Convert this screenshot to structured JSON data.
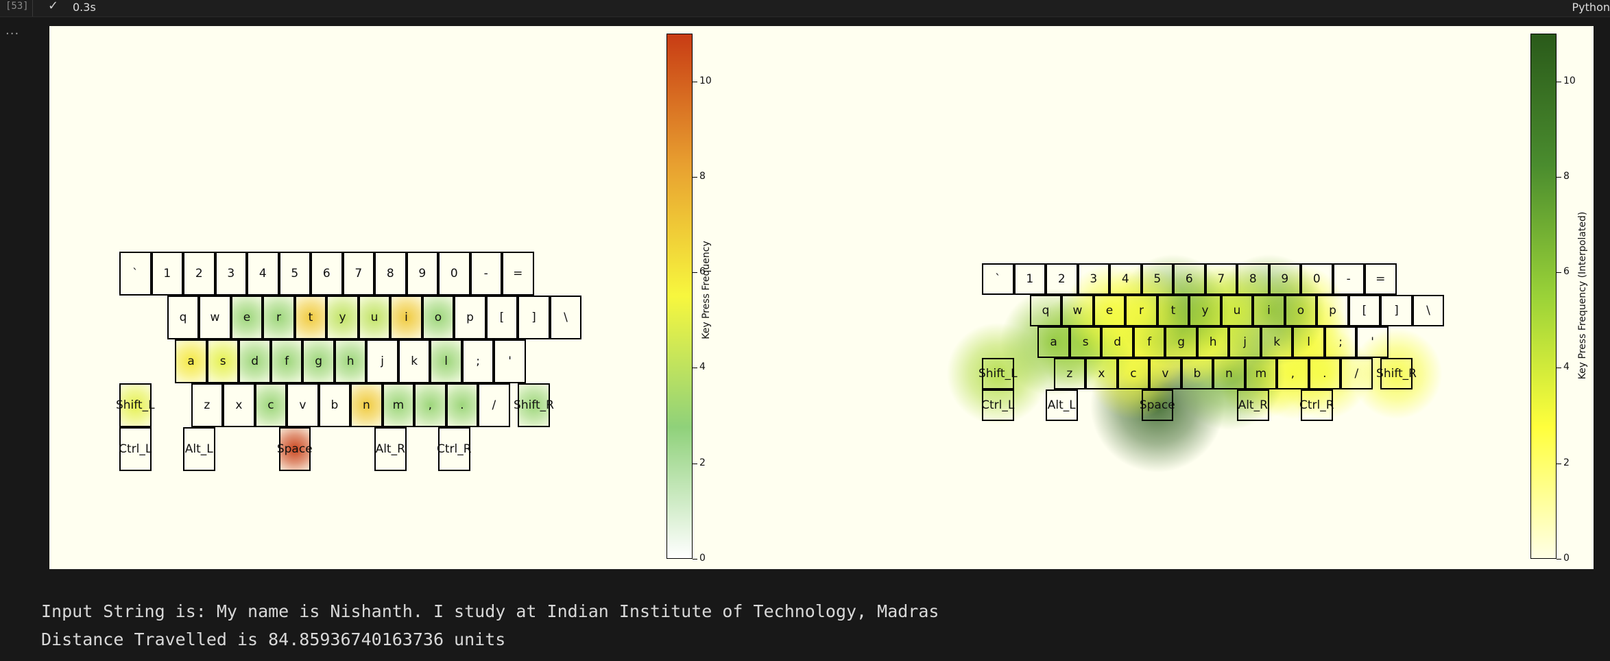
{
  "cell": {
    "execution_count": "[53]",
    "status_icon": "checkmark-icon",
    "duration": "0.3s",
    "kernel_label": "Python",
    "collapse_label": "..."
  },
  "figure": {
    "left_plot": {
      "colorbar_label": "Key Press Frequency",
      "colorbar_ticks": [
        "0",
        "2",
        "4",
        "6",
        "8",
        "10"
      ],
      "colormap": [
        "#ffffff",
        "#8fd17a",
        "#f7f73e",
        "#e8a030",
        "#c83c14"
      ],
      "vmax": 11
    },
    "right_plot": {
      "colorbar_label": "Key Press Frequency (Interpolated)",
      "colorbar_ticks": [
        "0",
        "2",
        "4",
        "6",
        "8",
        "10"
      ],
      "colormap": [
        "#ffffe6",
        "#ffff3c",
        "#9ad238",
        "#4a8c2e",
        "#2a5a1a"
      ],
      "vmax": 11
    },
    "keys": [
      {
        "label": "`",
        "count": 0
      },
      {
        "label": "1",
        "count": 0
      },
      {
        "label": "2",
        "count": 0
      },
      {
        "label": "3",
        "count": 0
      },
      {
        "label": "4",
        "count": 0
      },
      {
        "label": "5",
        "count": 0
      },
      {
        "label": "6",
        "count": 0
      },
      {
        "label": "7",
        "count": 0
      },
      {
        "label": "8",
        "count": 0
      },
      {
        "label": "9",
        "count": 0
      },
      {
        "label": "0",
        "count": 0
      },
      {
        "label": "-",
        "count": 0
      },
      {
        "label": "=",
        "count": 0
      },
      {
        "label": "q",
        "count": 0
      },
      {
        "label": "w",
        "count": 0
      },
      {
        "label": "e",
        "count": 3
      },
      {
        "label": "r",
        "count": 3
      },
      {
        "label": "t",
        "count": 7
      },
      {
        "label": "y",
        "count": 4
      },
      {
        "label": "u",
        "count": 4
      },
      {
        "label": "i",
        "count": 7
      },
      {
        "label": "o",
        "count": 3
      },
      {
        "label": "p",
        "count": 0
      },
      {
        "label": "[",
        "count": 0
      },
      {
        "label": "]",
        "count": 0
      },
      {
        "label": "\\",
        "count": 0
      },
      {
        "label": "a",
        "count": 6
      },
      {
        "label": "s",
        "count": 5
      },
      {
        "label": "d",
        "count": 3
      },
      {
        "label": "f",
        "count": 3
      },
      {
        "label": "g",
        "count": 3
      },
      {
        "label": "h",
        "count": 3
      },
      {
        "label": "j",
        "count": 0
      },
      {
        "label": "k",
        "count": 0
      },
      {
        "label": "l",
        "count": 3
      },
      {
        "label": ";",
        "count": 0
      },
      {
        "label": "'",
        "count": 0
      },
      {
        "label": "Shift_L",
        "count": 5
      },
      {
        "label": "z",
        "count": 0
      },
      {
        "label": "x",
        "count": 0
      },
      {
        "label": "c",
        "count": 3
      },
      {
        "label": "v",
        "count": 0
      },
      {
        "label": "b",
        "count": 0
      },
      {
        "label": "n",
        "count": 7
      },
      {
        "label": "m",
        "count": 3
      },
      {
        "label": ",",
        "count": 3
      },
      {
        "label": ".",
        "count": 3
      },
      {
        "label": "/",
        "count": 0
      },
      {
        "label": "Shift_R",
        "count": 3
      },
      {
        "label": "Ctrl_L",
        "count": 0
      },
      {
        "label": "Alt_L",
        "count": 0
      },
      {
        "label": "Space",
        "count": 11
      },
      {
        "label": "Alt_R",
        "count": 0
      },
      {
        "label": "Ctrl_R",
        "count": 0
      }
    ]
  },
  "output": {
    "line1": "Input String is: My name is Nishanth. I study at Indian Institute of Technology, Madras",
    "line2": "Distance Travelled is 84.85936740163736 units"
  }
}
